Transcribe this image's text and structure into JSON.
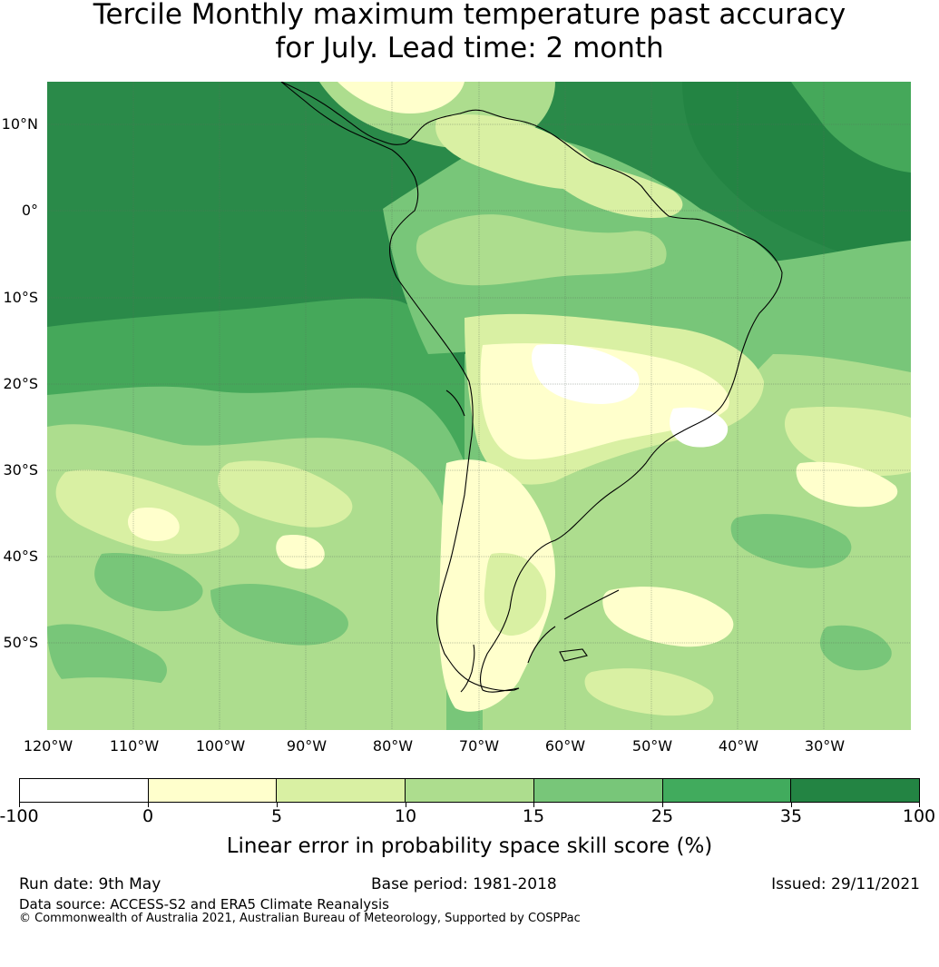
{
  "title": {
    "line1": "Tercile Monthly maximum temperature past accuracy",
    "line2": "for July. Lead time: 2 month"
  },
  "map": {
    "region": "South America",
    "lat_labels": [
      "10°N",
      "0°",
      "10°S",
      "20°S",
      "30°S",
      "40°S",
      "50°S"
    ],
    "lon_labels": [
      "120°W",
      "110°W",
      "100°W",
      "90°W",
      "80°W",
      "70°W",
      "60°W",
      "50°W",
      "40°W",
      "30°W"
    ],
    "lon_range": [
      -120,
      -20
    ],
    "lat_range": [
      -60,
      15
    ],
    "gridlines": true
  },
  "colorbar": {
    "tick_labels": [
      "-100",
      "0",
      "5",
      "10",
      "15",
      "25",
      "35",
      "100"
    ],
    "colors": [
      "#ffffff",
      "#ffffcc",
      "#d9f0a3",
      "#addd8e",
      "#78c679",
      "#41ab5d",
      "#238443"
    ],
    "label": "Linear error in probability space skill score (%)"
  },
  "footer": {
    "run_date": "Run date: 9th May",
    "base_period": "Base period: 1981-2018",
    "issued": "Issued: 29/11/2021",
    "data_source": "Data source: ACCESS-S2 and ERA5 Climate Reanalysis",
    "copyright": "© Commonwealth of Australia 2021, Australian Bureau of Meteorology, Supported by COSPPac"
  }
}
